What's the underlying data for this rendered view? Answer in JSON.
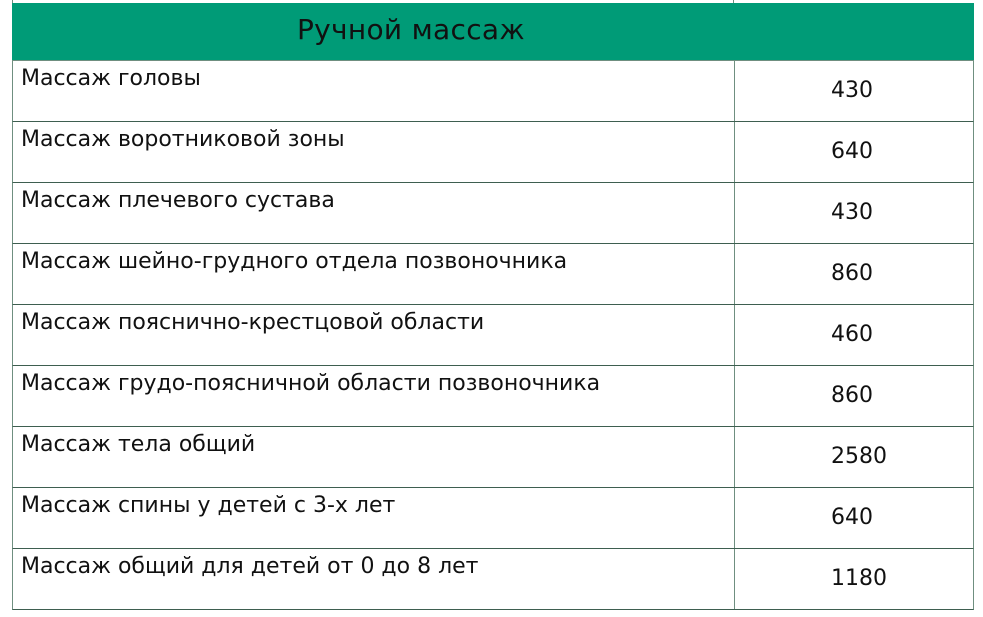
{
  "colors": {
    "header_bg": "#009b77",
    "border": "#6f8f80"
  },
  "section": {
    "title": "Ручной массаж"
  },
  "rows": [
    {
      "name": "Массаж головы",
      "price": "430"
    },
    {
      "name": "Массаж воротниковой зоны",
      "price": "640"
    },
    {
      "name": "Массаж плечевого сустава",
      "price": "430"
    },
    {
      "name": "Массаж шейно-грудного отдела позвоночника",
      "price": "860"
    },
    {
      "name": "Массаж пояснично-крестцовой области",
      "price": "460"
    },
    {
      "name": "Массаж грудо-поясничной области позвоночника",
      "price": "860"
    },
    {
      "name": "Массаж тела общий",
      "price": "2580"
    },
    {
      "name": "Массаж спины у детей с 3-х лет",
      "price": "640"
    },
    {
      "name": "Массаж общий для детей от 0 до 8 лет",
      "price": "1180"
    }
  ]
}
